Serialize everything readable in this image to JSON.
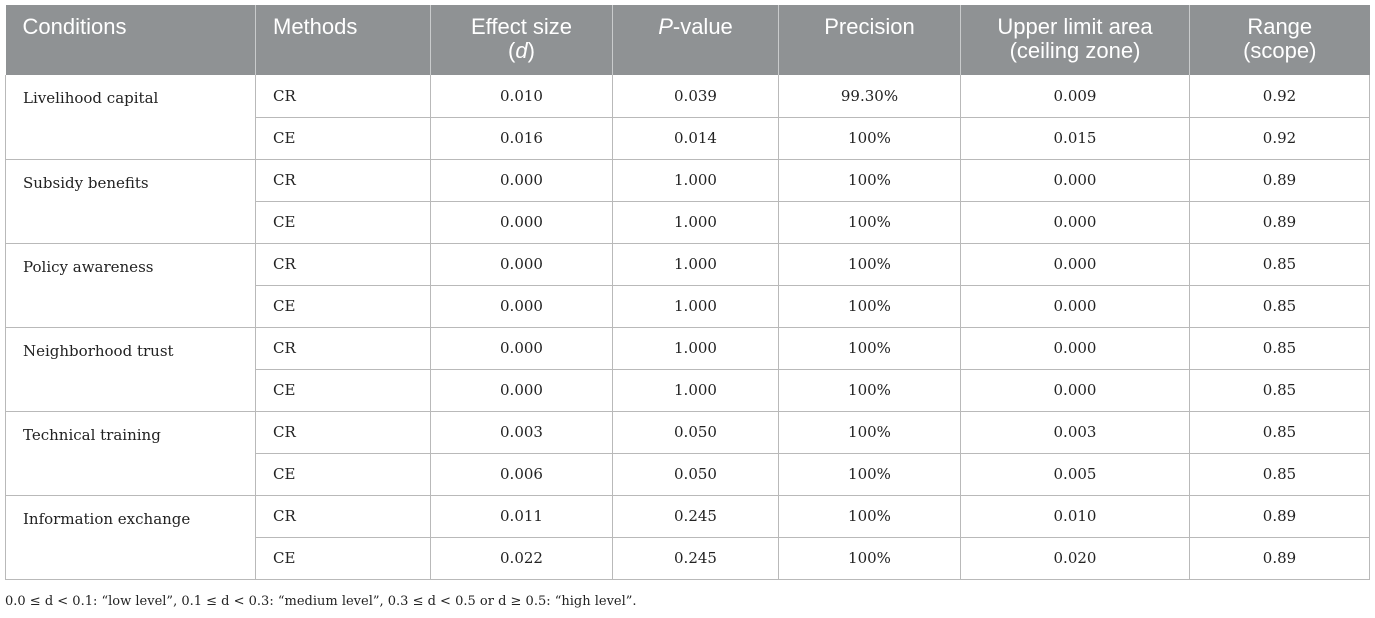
{
  "table": {
    "headers": {
      "conditions": "Conditions",
      "methods": "Methods",
      "effect_size_line1": "Effect size",
      "effect_size_line2_open": "(",
      "effect_size_symbol": "d",
      "effect_size_line2_close": ")",
      "p_value_italic": "P",
      "p_value_rest": "-value",
      "precision": "Precision",
      "upper_limit_line1": "Upper limit area",
      "upper_limit_line2": "(ceiling zone)",
      "range_line1": "Range",
      "range_line2": "(scope)"
    },
    "groups": [
      {
        "condition": "Livelihood capital",
        "rows": [
          {
            "method": "CR",
            "effect": "0.010",
            "p": "0.039",
            "precision": "99.30%",
            "upper": "0.009",
            "range": "0.92"
          },
          {
            "method": "CE",
            "effect": "0.016",
            "p": "0.014",
            "precision": "100%",
            "upper": "0.015",
            "range": "0.92"
          }
        ]
      },
      {
        "condition": "Subsidy benefits",
        "rows": [
          {
            "method": "CR",
            "effect": "0.000",
            "p": "1.000",
            "precision": "100%",
            "upper": "0.000",
            "range": "0.89"
          },
          {
            "method": "CE",
            "effect": "0.000",
            "p": "1.000",
            "precision": "100%",
            "upper": "0.000",
            "range": "0.89"
          }
        ]
      },
      {
        "condition": "Policy awareness",
        "rows": [
          {
            "method": "CR",
            "effect": "0.000",
            "p": "1.000",
            "precision": "100%",
            "upper": "0.000",
            "range": "0.85"
          },
          {
            "method": "CE",
            "effect": "0.000",
            "p": "1.000",
            "precision": "100%",
            "upper": "0.000",
            "range": "0.85"
          }
        ]
      },
      {
        "condition": "Neighborhood trust",
        "rows": [
          {
            "method": "CR",
            "effect": "0.000",
            "p": "1.000",
            "precision": "100%",
            "upper": "0.000",
            "range": "0.85"
          },
          {
            "method": "CE",
            "effect": "0.000",
            "p": "1.000",
            "precision": "100%",
            "upper": "0.000",
            "range": "0.85"
          }
        ]
      },
      {
        "condition": "Technical training",
        "rows": [
          {
            "method": "CR",
            "effect": "0.003",
            "p": "0.050",
            "precision": "100%",
            "upper": "0.003",
            "range": "0.85"
          },
          {
            "method": "CE",
            "effect": "0.006",
            "p": "0.050",
            "precision": "100%",
            "upper": "0.005",
            "range": "0.85"
          }
        ]
      },
      {
        "condition": "Information exchange",
        "rows": [
          {
            "method": "CR",
            "effect": "0.011",
            "p": "0.245",
            "precision": "100%",
            "upper": "0.010",
            "range": "0.89"
          },
          {
            "method": "CE",
            "effect": "0.022",
            "p": "0.245",
            "precision": "100%",
            "upper": "0.020",
            "range": "0.89"
          }
        ]
      }
    ]
  },
  "footnote": "0.0 ≤ d < 0.1: “low level”, 0.1 ≤ d < 0.3: “medium level”, 0.3 ≤ d < 0.5 or d ≥ 0.5: “high level”.",
  "colors": {
    "header_bg": "#8f9294",
    "header_text": "#ffffff",
    "grid": "#b9b9b9"
  }
}
